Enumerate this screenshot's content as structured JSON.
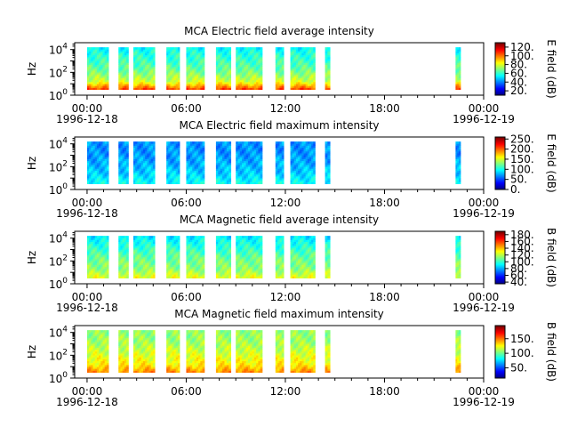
{
  "chart_data": {
    "type": "heatmap",
    "x_range_hours": [
      -0.75,
      24.0
    ],
    "x_ticks": [
      {
        "hour": 0,
        "time": "00:00",
        "date": "1996-12-18"
      },
      {
        "hour": 6,
        "time": "06:00",
        "date": ""
      },
      {
        "hour": 12,
        "time": "12:00",
        "date": ""
      },
      {
        "hour": 18,
        "time": "18:00",
        "date": ""
      },
      {
        "hour": 24,
        "time": "00:00",
        "date": "1996-12-19"
      }
    ],
    "y_scale": "log",
    "y_range_log10": [
      0,
      4.6
    ],
    "y_ticks": [
      {
        "base": "10",
        "exp": "0",
        "log": 0
      },
      {
        "base": "10",
        "exp": "2",
        "log": 2
      },
      {
        "base": "10",
        "exp": "4",
        "log": 4
      }
    ],
    "ylabel": "Hz",
    "colormap": "jet",
    "data_segments_hours": [
      [
        0.0,
        1.3
      ],
      [
        1.9,
        2.5
      ],
      [
        2.8,
        4.1
      ],
      [
        4.8,
        5.6
      ],
      [
        6.0,
        7.1
      ],
      [
        7.8,
        8.7
      ],
      [
        9.0,
        10.6
      ],
      [
        11.4,
        11.9
      ],
      [
        12.3,
        13.8
      ],
      [
        14.4,
        14.7
      ],
      [
        22.3,
        22.6
      ]
    ],
    "panels": [
      {
        "title": "MCA  Electric field average intensity",
        "colorbar_label": "E field (dB)",
        "color_range": [
          10,
          130
        ],
        "colorbar_ticks": [
          {
            "label": "20.",
            "v": 20
          },
          {
            "label": "40.",
            "v": 40
          },
          {
            "label": "60.",
            "v": 60
          },
          {
            "label": "80.",
            "v": 80
          },
          {
            "label": "100.",
            "v": 100
          },
          {
            "label": "120.",
            "v": 120
          }
        ],
        "profile": [
          [
            0.5,
            110
          ],
          [
            1.2,
            80
          ],
          [
            2.2,
            68
          ],
          [
            3.0,
            62
          ],
          [
            3.8,
            58
          ],
          [
            4.2,
            54
          ]
        ]
      },
      {
        "title": "MCA  Electric field maximum intensity",
        "colorbar_label": "E field (dB)",
        "color_range": [
          0,
          260
        ],
        "colorbar_ticks": [
          {
            "label": "0.",
            "v": 0
          },
          {
            "label": "50.",
            "v": 50
          },
          {
            "label": "100.",
            "v": 100
          },
          {
            "label": "150.",
            "v": 150
          },
          {
            "label": "200.",
            "v": 200
          },
          {
            "label": "250.",
            "v": 250
          }
        ],
        "profile": [
          [
            0.5,
            100
          ],
          [
            1.5,
            85
          ],
          [
            2.5,
            75
          ],
          [
            3.3,
            70
          ],
          [
            4.2,
            70
          ]
        ]
      },
      {
        "title": "MCA  Magnetic field average intensity",
        "colorbar_label": "B field (dB)",
        "color_range": [
          35,
          190
        ],
        "colorbar_ticks": [
          {
            "label": "40.",
            "v": 40
          },
          {
            "label": "60.",
            "v": 60
          },
          {
            "label": "80.",
            "v": 80
          },
          {
            "label": "100.",
            "v": 100
          },
          {
            "label": "120.",
            "v": 120
          },
          {
            "label": "140.",
            "v": 140
          },
          {
            "label": "160.",
            "v": 160
          },
          {
            "label": "180.",
            "v": 180
          }
        ],
        "profile": [
          [
            0.5,
            130
          ],
          [
            1.3,
            115
          ],
          [
            2.2,
            110
          ],
          [
            3.2,
            100
          ],
          [
            4.0,
            92
          ],
          [
            4.2,
            88
          ]
        ]
      },
      {
        "title": "MCA  Magnetic field maximum intensity",
        "colorbar_label": "B field (dB)",
        "color_range": [
          15,
          195
        ],
        "colorbar_ticks": [
          {
            "label": "50.",
            "v": 50
          },
          {
            "label": "100.",
            "v": 100
          },
          {
            "label": "150.",
            "v": 150
          }
        ],
        "profile": [
          [
            0.5,
            150
          ],
          [
            1.2,
            130
          ],
          [
            2.2,
            120
          ],
          [
            3.3,
            110
          ],
          [
            4.2,
            108
          ]
        ]
      }
    ]
  }
}
